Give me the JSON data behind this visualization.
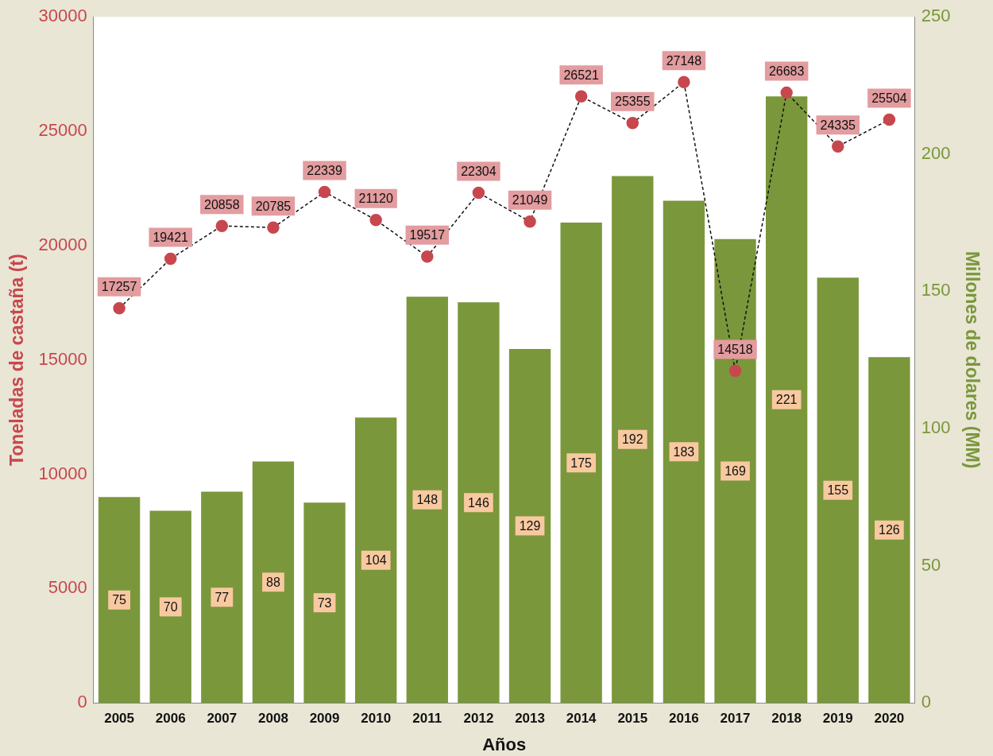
{
  "chart_data": {
    "type": "bar",
    "xlabel": "Años",
    "ylabel": "Toneladas de castaña (t)",
    "y2label": "Millones de dolares (MM)",
    "categories": [
      "2005",
      "2006",
      "2007",
      "2008",
      "2009",
      "2010",
      "2011",
      "2012",
      "2013",
      "2014",
      "2015",
      "2016",
      "2017",
      "2018",
      "2019",
      "2020"
    ],
    "series": [
      {
        "axis": "y2",
        "color": "#7a973b",
        "values": [
          75,
          70,
          77,
          88,
          73,
          104,
          148,
          146,
          129,
          175,
          192,
          183,
          169,
          221,
          155,
          126
        ]
      },
      {
        "type": "line",
        "axis": "y",
        "color": "#c8474e",
        "marker": "circle",
        "line_style": "dashed",
        "values": [
          17257,
          19421,
          20858,
          20785,
          22339,
          21120,
          19517,
          22304,
          21049,
          26521,
          25355,
          27148,
          14518,
          26683,
          24335,
          25504
        ]
      }
    ],
    "ylim": [
      0,
      30000
    ],
    "yticks": [
      0,
      5000,
      10000,
      15000,
      20000,
      25000,
      30000
    ],
    "y2lim": [
      0,
      250
    ],
    "y2ticks": [
      0,
      50,
      100,
      150,
      200,
      250
    ],
    "data_labels": true,
    "grid": false,
    "legend": false
  }
}
